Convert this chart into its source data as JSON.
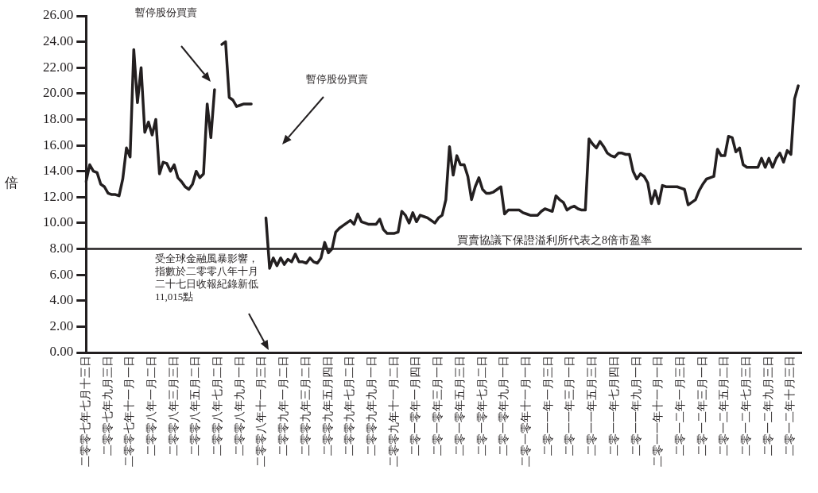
{
  "chart_data": {
    "type": "line",
    "ylabel": "倍",
    "categories": [
      "二零零七年七月十三日",
      null,
      null,
      null,
      null,
      null,
      "二零零七年九月三日",
      null,
      null,
      null,
      null,
      null,
      "二零零七年十一月一日",
      null,
      null,
      null,
      null,
      null,
      "二零零八年一月二日",
      null,
      null,
      null,
      null,
      null,
      "二零零八年三月三日",
      null,
      null,
      null,
      null,
      null,
      "二零零八年五月二日",
      null,
      null,
      null,
      null,
      null,
      "二零零八年七月二日",
      null,
      null,
      null,
      null,
      null,
      "二零零八年九月一日",
      null,
      null,
      null,
      null,
      null,
      "二零零八年十一月三日",
      null,
      null,
      null,
      null,
      null,
      "二零零九年一月二日",
      null,
      null,
      null,
      null,
      null,
      "二零零九年三月二日",
      null,
      null,
      null,
      null,
      null,
      "二零零九年五月四日",
      null,
      null,
      null,
      null,
      null,
      "二零零九年七月二日",
      null,
      null,
      null,
      null,
      null,
      "二零零九年九月一日",
      null,
      null,
      null,
      null,
      null,
      "二零零九年十一月二日",
      null,
      null,
      null,
      null,
      null,
      "二零一零年一月四日",
      null,
      null,
      null,
      null,
      null,
      "二零一零年三月一日",
      null,
      null,
      null,
      null,
      null,
      "二零一零年五月三日",
      null,
      null,
      null,
      null,
      null,
      "二零一零年七月二日",
      null,
      null,
      null,
      null,
      null,
      "二零一零年九月一日",
      null,
      null,
      null,
      null,
      null,
      "二零一零年十一月一日",
      null,
      null,
      null,
      null,
      null,
      "二零一一年一月三日",
      null,
      null,
      null,
      null,
      null,
      "二零一一年三月一日",
      null,
      null,
      null,
      null,
      null,
      "二零一一年五月三日",
      null,
      null,
      null,
      null,
      null,
      "二零一一年七月四日",
      null,
      null,
      null,
      null,
      null,
      "二零一一年九月一日",
      null,
      null,
      null,
      null,
      null,
      "二零一一年十一月一日",
      null,
      null,
      null,
      null,
      null,
      "二零一二年一月三日",
      null,
      null,
      null,
      null,
      null,
      "二零一二年三月一日",
      null,
      null,
      null,
      null,
      null,
      "二零一二年五月二日",
      null,
      null,
      null,
      null,
      null,
      "二零一二年七月三日",
      null,
      null,
      null,
      null,
      null,
      "二零一二年九月三日",
      null,
      null,
      null,
      null,
      null,
      "二零一二年十月三日",
      null,
      null,
      null
    ],
    "ylim": [
      0,
      26
    ],
    "yticks": [
      {
        "value": 0,
        "label": "0.00"
      },
      {
        "value": 2,
        "label": "2.00"
      },
      {
        "value": 4,
        "label": "4.00"
      },
      {
        "value": 6,
        "label": "6.00"
      },
      {
        "value": 8,
        "label": "8.00"
      },
      {
        "value": 10,
        "label": "10.00"
      },
      {
        "value": 12,
        "label": "12.00"
      },
      {
        "value": 14,
        "label": "14.00"
      },
      {
        "value": 16,
        "label": "16.00"
      },
      {
        "value": 18,
        "label": "18.00"
      },
      {
        "value": 20,
        "label": "20.00"
      },
      {
        "value": 22,
        "label": "22.00"
      },
      {
        "value": 24,
        "label": "24.00"
      },
      {
        "value": 26,
        "label": "26.00"
      }
    ],
    "grid": false,
    "legend": false,
    "marker": "none",
    "line_style": "solid",
    "ref_lines": [
      {
        "axis": "y",
        "value": 8,
        "label": "買賣協議下保證溢利所代表之8倍市盈率",
        "color": "#231f20"
      }
    ],
    "annotations": [
      "暫停股份買賣",
      "暫停股份買賣",
      "受全球金融風暴影響，指數於二零零八年十月二十七日收報紀錄新低11,015點"
    ],
    "series": [
      {
        "color": "#231f20",
        "values": [
          13.2,
          14.5,
          14.0,
          13.9,
          13.0,
          12.8,
          12.3,
          12.2,
          12.2,
          12.1,
          13.4,
          15.8,
          15.1,
          23.4,
          19.3,
          22.0,
          17.0,
          17.8,
          16.8,
          18.0,
          13.8,
          14.7,
          14.6,
          14.0,
          14.5,
          13.5,
          13.2,
          12.8,
          12.6,
          13.0,
          14.0,
          13.5,
          13.8,
          19.2,
          16.6,
          20.3,
          null,
          23.8,
          24.0,
          19.7,
          19.5,
          19.0,
          19.1,
          19.2,
          19.2,
          19.2,
          null,
          null,
          null,
          10.4,
          6.5,
          7.3,
          6.7,
          7.3,
          6.8,
          7.2,
          7.0,
          7.6,
          7.0,
          7.0,
          6.9,
          7.3,
          7.0,
          6.9,
          7.3,
          8.5,
          7.7,
          8.0,
          9.3,
          9.6,
          9.8,
          10.0,
          10.2,
          9.9,
          10.7,
          10.1,
          10.0,
          9.9,
          9.9,
          9.9,
          10.3,
          9.5,
          9.2,
          9.2,
          9.2,
          9.3,
          10.9,
          10.6,
          10.0,
          10.8,
          10.1,
          10.6,
          10.5,
          10.4,
          10.2,
          10.0,
          10.4,
          10.6,
          11.8,
          15.9,
          13.7,
          15.2,
          14.5,
          14.5,
          13.6,
          11.8,
          12.8,
          13.5,
          12.6,
          12.3,
          12.3,
          12.4,
          12.6,
          12.8,
          10.7,
          11.0,
          11.0,
          11.0,
          11.0,
          10.8,
          10.7,
          10.6,
          10.6,
          10.6,
          10.9,
          11.1,
          11.0,
          10.9,
          12.1,
          11.8,
          11.6,
          11.0,
          11.2,
          11.3,
          11.1,
          11.0,
          11.0,
          16.5,
          16.1,
          15.8,
          16.3,
          15.9,
          15.4,
          15.2,
          15.1,
          15.4,
          15.4,
          15.3,
          15.3,
          14.0,
          13.4,
          13.8,
          13.6,
          13.1,
          11.5,
          12.5,
          11.5,
          12.9,
          12.8,
          12.8,
          12.8,
          12.8,
          12.7,
          12.6,
          11.4,
          11.6,
          11.8,
          12.5,
          13.0,
          13.4,
          13.5,
          13.6,
          15.7,
          15.2,
          15.2,
          16.7,
          16.6,
          15.5,
          15.8,
          14.5,
          14.3,
          14.3,
          14.3,
          14.3,
          15.0,
          14.3,
          15.0,
          14.3,
          15.0,
          15.4,
          14.7,
          15.6,
          15.3,
          19.6,
          20.6,
          null
        ]
      }
    ]
  }
}
